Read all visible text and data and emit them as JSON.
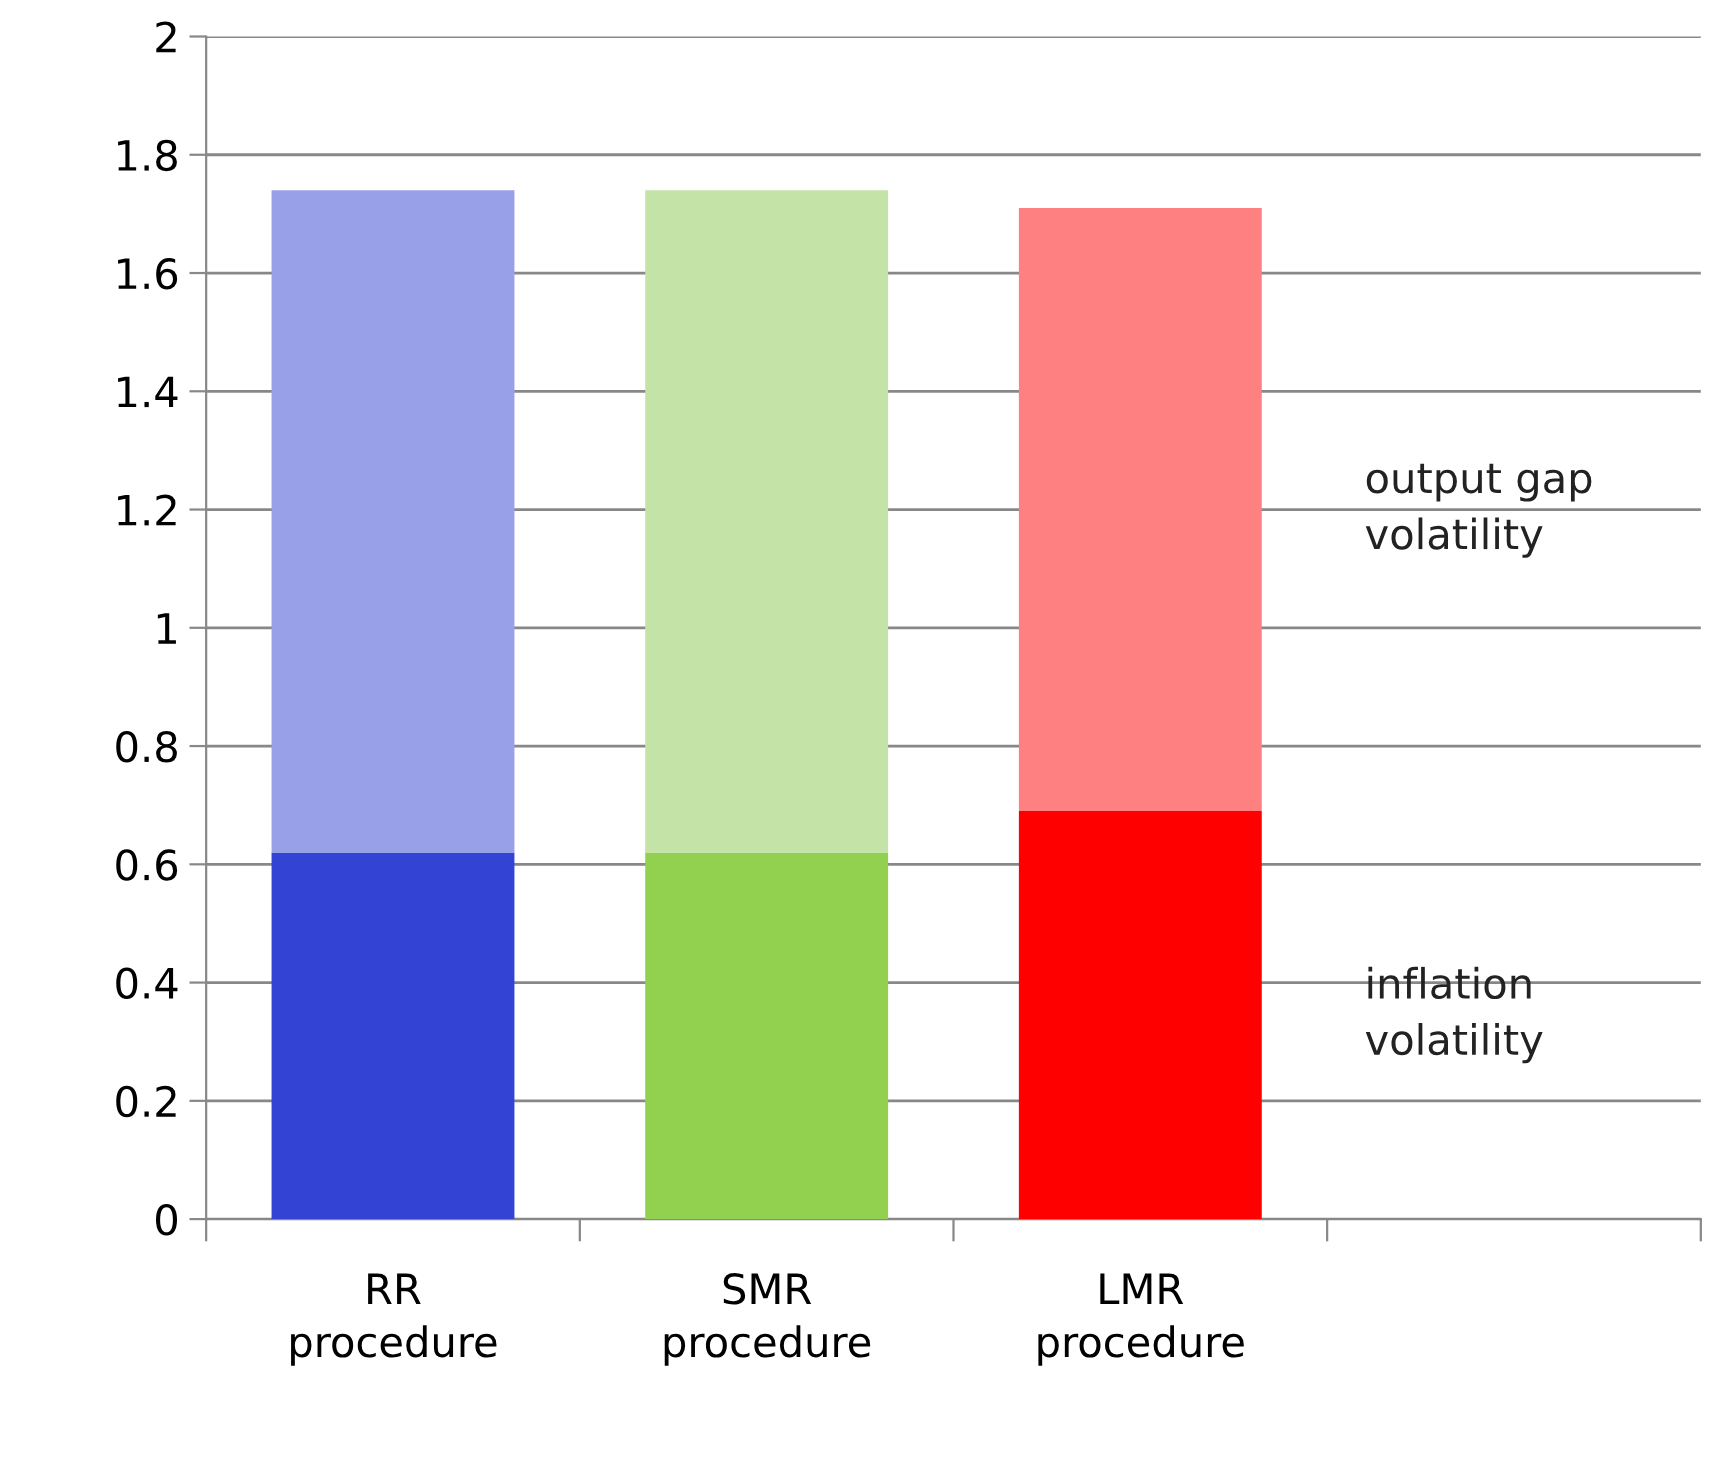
{
  "chart_data": {
    "type": "bar",
    "stacked": true,
    "categories": [
      "RR\nprocedure",
      "SMR\nprocedure",
      "LMR\nprocedure",
      null
    ],
    "series": [
      {
        "name": "inflation volatility",
        "colors": [
          "#3344d4",
          "#92d050",
          "#ff0000",
          null
        ],
        "values": [
          0.62,
          0.62,
          0.69,
          null
        ]
      },
      {
        "name": "output gap volatility",
        "colors": [
          "#98a0e8",
          "#c4e3a6",
          "#ff8080",
          null
        ],
        "values": [
          1.12,
          1.12,
          1.02,
          null
        ]
      }
    ],
    "ylim": [
      0,
      2
    ],
    "yticks": [
      0,
      0.2,
      0.4,
      0.6,
      0.8,
      1,
      1.2,
      1.4,
      1.6,
      1.8,
      2
    ],
    "grid": "y"
  }
}
